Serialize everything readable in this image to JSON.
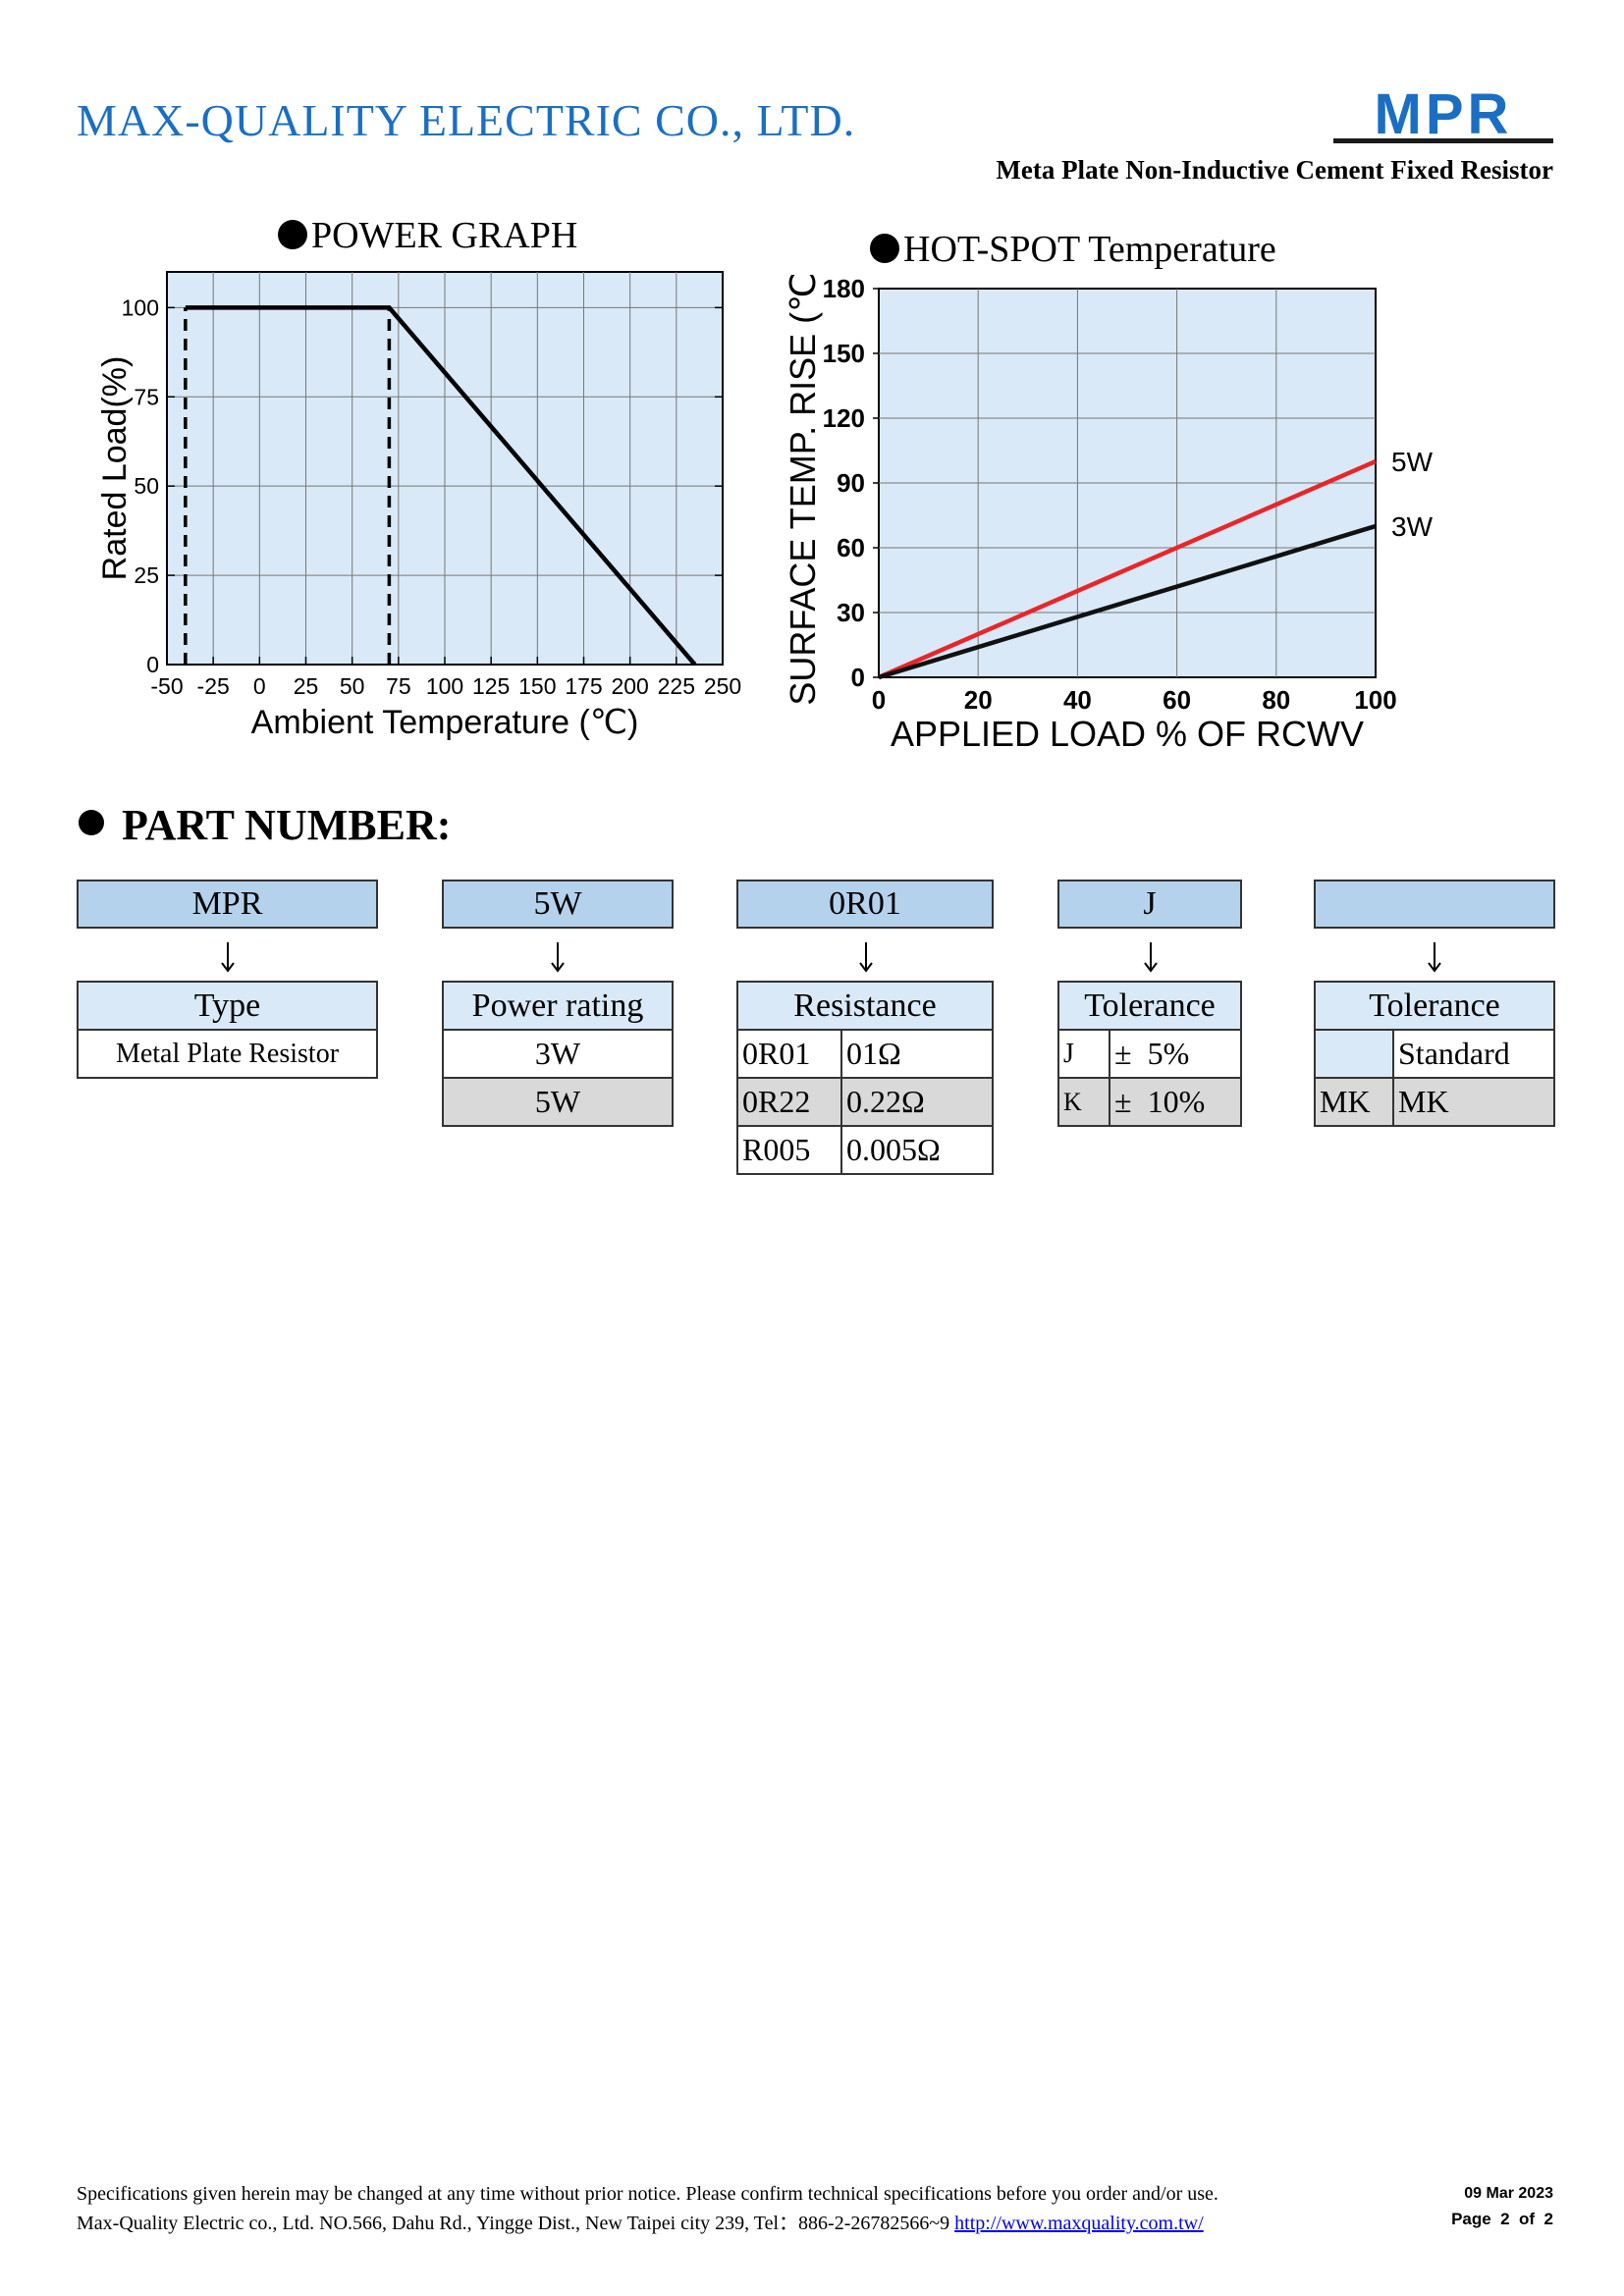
{
  "header": {
    "company": "MAX-QUALITY  ELECTRIC  CO.,  LTD.",
    "logo_text": "MPR",
    "subtitle": "Meta Plate Non-Inductive Cement Fixed Resistor",
    "colors": {
      "company": "#1a6fc2",
      "logo": "#1a6fc2"
    }
  },
  "power_graph": {
    "title": "POWER GRAPH",
    "ylabel": "Rated Load(%)",
    "xlabel": "Ambient Temperature (℃)"
  },
  "hotspot": {
    "title": "HOT-SPOT Temperature",
    "ylabel": "SURFACE TEMP. RISE (℃)",
    "xlabel": "APPLIED LOAD % OF RCWV"
  },
  "chart_data": [
    {
      "type": "line",
      "title": "POWER GRAPH",
      "xlabel": "Ambient Temperature (℃)",
      "ylabel": "Rated Load(%)",
      "xlim": [
        -50,
        250
      ],
      "ylim": [
        0,
        110
      ],
      "xticks": [
        "-50",
        "-25",
        "0",
        "25",
        "50",
        "75",
        "100",
        "125",
        "150",
        "175",
        "200",
        "225",
        "250"
      ],
      "yticks": [
        "0",
        "25",
        "50",
        "75",
        "100"
      ],
      "grid": true,
      "series": [
        {
          "x": [
            -40,
            70,
            235
          ],
          "y": [
            100,
            100,
            0
          ],
          "color": "#000000",
          "style": "solid"
        }
      ],
      "guides": [
        {
          "x": [
            -40,
            -40
          ],
          "y": [
            0,
            100
          ],
          "style": "dashed"
        },
        {
          "x": [
            70,
            70
          ],
          "y": [
            0,
            100
          ],
          "style": "dashed"
        }
      ],
      "background": "#d9e9f7"
    },
    {
      "type": "line",
      "title": "HOT-SPOT Temperature",
      "xlabel": "APPLIED LOAD % OF RCWV",
      "ylabel": "SURFACE TEMP. RISE (℃)",
      "xlim": [
        0,
        100
      ],
      "ylim": [
        0,
        180
      ],
      "xticks": [
        "0",
        "20",
        "40",
        "60",
        "80",
        "100"
      ],
      "yticks": [
        "0",
        "30",
        "60",
        "90",
        "120",
        "150",
        "180"
      ],
      "grid": true,
      "series": [
        {
          "name": "5W",
          "x": [
            0,
            100
          ],
          "y": [
            0,
            100
          ],
          "color": "#e8262a"
        },
        {
          "name": "3W",
          "x": [
            0,
            100
          ],
          "y": [
            0,
            70
          ],
          "color": "#111111"
        }
      ],
      "background": "#d9e9f7"
    }
  ],
  "part_number": {
    "heading": "PART NUMBER:",
    "codes": [
      "MPR",
      "5W",
      "0R01",
      "J",
      ""
    ],
    "type": {
      "header": "Type",
      "rows": [
        "Metal Plate Resistor"
      ]
    },
    "power": {
      "header": "Power rating",
      "rows": [
        "3W",
        "5W"
      ]
    },
    "resistance": {
      "header": "Resistance",
      "rows": [
        {
          "code": "0R01",
          "value": "01Ω"
        },
        {
          "code": "0R22",
          "value": "0.22Ω"
        },
        {
          "code": "R005",
          "value": "0.005Ω"
        }
      ]
    },
    "tolerance": {
      "header": "Tolerance",
      "rows": [
        {
          "code": "J",
          "value": "±  5%"
        },
        {
          "code": "K",
          "value": "±  10%"
        }
      ]
    },
    "tolerance2": {
      "header": "Tolerance",
      "rows": [
        {
          "code": "",
          "value": "Standard"
        },
        {
          "code": "MK",
          "value": "MK"
        }
      ]
    }
  },
  "footer": {
    "notice": "Specifications given herein may be changed at any time without prior notice. Please confirm technical specifications before you order and/or use.",
    "address": "Max-Quality Electric co., Ltd. NO.566, Dahu Rd., Yingge Dist., New Taipei city 239, Tel：886-2-26782566~9 ",
    "url": "http://www.maxquality.com.tw/",
    "date": "09 Mar 2023",
    "page": "Page  2  of  2"
  }
}
